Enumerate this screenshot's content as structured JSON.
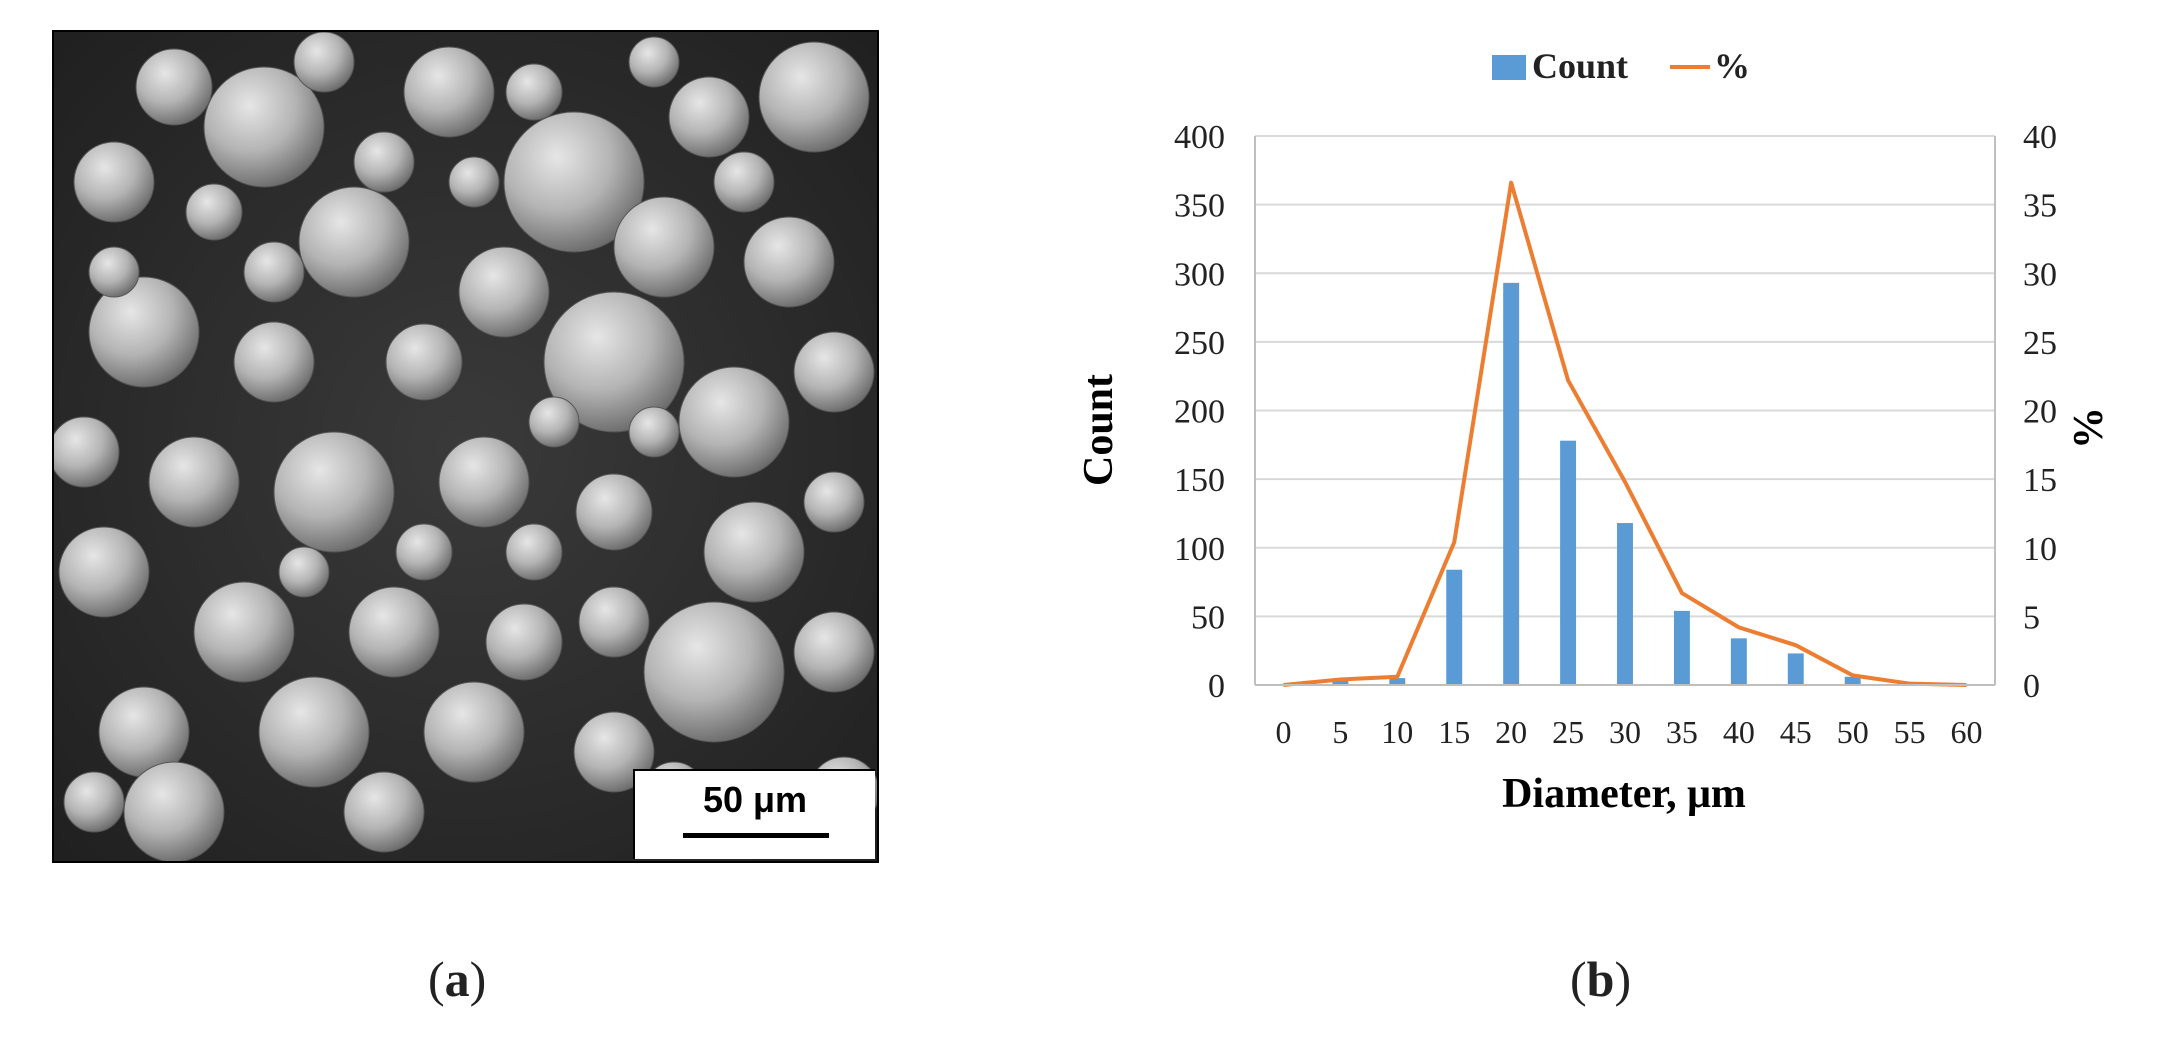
{
  "panel_a": {
    "scale_label": "50 μm",
    "caption_open": "(",
    "caption_letter": "a",
    "caption_close": ")"
  },
  "panel_b": {
    "caption_open": "(",
    "caption_letter": "b",
    "caption_close": ")"
  },
  "colors": {
    "bar": "#5b9bd5",
    "line": "#ed7d31",
    "grid": "#d9d9d9",
    "axis_text": "#222222"
  },
  "chart_data": {
    "type": "bar",
    "title": "",
    "xlabel": "Diameter, μm",
    "ylabel": "Count",
    "y2label": "%",
    "legend_position": "top-center",
    "grid": true,
    "x": [
      0,
      5,
      10,
      15,
      20,
      25,
      30,
      35,
      40,
      45,
      50,
      55,
      60
    ],
    "ylim": [
      0,
      400
    ],
    "y2lim": [
      0,
      40
    ],
    "yticks": [
      0,
      50,
      100,
      150,
      200,
      250,
      300,
      350,
      400
    ],
    "y2ticks": [
      0,
      5,
      10,
      15,
      20,
      25,
      30,
      35,
      40
    ],
    "series": [
      {
        "name": "Count",
        "type": "bar",
        "axis": "left",
        "values": [
          0,
          3,
          5,
          84,
          293,
          178,
          118,
          54,
          34,
          23,
          6,
          1,
          0
        ]
      },
      {
        "name": "%",
        "type": "line",
        "axis": "right",
        "values": [
          0,
          0.4,
          0.6,
          10.4,
          36.6,
          22.2,
          14.8,
          6.7,
          4.2,
          2.9,
          0.7,
          0.1,
          0
        ]
      }
    ]
  }
}
